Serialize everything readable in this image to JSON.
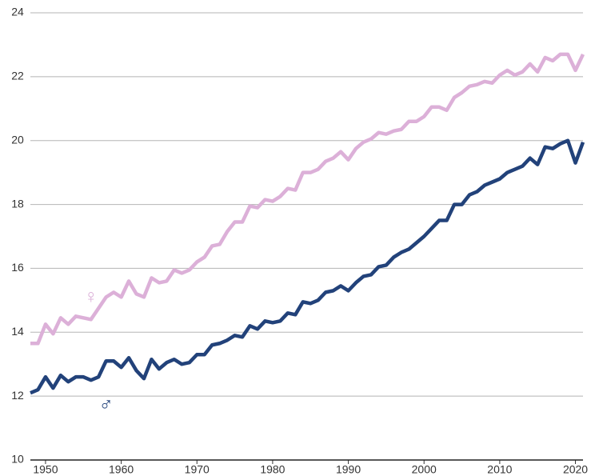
{
  "chart_data": {
    "type": "line",
    "x": [
      1948,
      1949,
      1950,
      1951,
      1952,
      1953,
      1954,
      1955,
      1956,
      1957,
      1958,
      1959,
      1960,
      1961,
      1962,
      1963,
      1964,
      1965,
      1966,
      1967,
      1968,
      1969,
      1970,
      1971,
      1972,
      1973,
      1974,
      1975,
      1976,
      1977,
      1978,
      1979,
      1980,
      1981,
      1982,
      1983,
      1984,
      1985,
      1986,
      1987,
      1988,
      1989,
      1990,
      1991,
      1992,
      1993,
      1994,
      1995,
      1996,
      1997,
      1998,
      1999,
      2000,
      2001,
      2002,
      2003,
      2004,
      2005,
      2006,
      2007,
      2008,
      2009,
      2010,
      2011,
      2012,
      2013,
      2014,
      2015,
      2016,
      2017,
      2018,
      2019,
      2020,
      2021
    ],
    "series": [
      {
        "name": "♀",
        "color": "#dcb0d8",
        "values": [
          13.65,
          13.65,
          14.25,
          13.95,
          14.45,
          14.25,
          14.5,
          14.45,
          14.4,
          14.75,
          15.1,
          15.25,
          15.1,
          15.6,
          15.2,
          15.1,
          15.7,
          15.55,
          15.6,
          15.95,
          15.85,
          15.95,
          16.2,
          16.35,
          16.7,
          16.75,
          17.15,
          17.45,
          17.45,
          17.95,
          17.9,
          18.15,
          18.1,
          18.25,
          18.5,
          18.45,
          19.0,
          19.0,
          19.1,
          19.35,
          19.45,
          19.65,
          19.4,
          19.75,
          19.95,
          20.05,
          20.25,
          20.2,
          20.3,
          20.35,
          20.6,
          20.6,
          20.75,
          21.05,
          21.05,
          20.95,
          21.35,
          21.5,
          21.7,
          21.75,
          21.85,
          21.8,
          22.05,
          22.2,
          22.05,
          22.15,
          22.4,
          22.15,
          22.6,
          22.5,
          22.7,
          22.7,
          22.2,
          22.7
        ]
      },
      {
        "name": "♂",
        "color": "#22427a",
        "values": [
          12.1,
          12.2,
          12.6,
          12.25,
          12.65,
          12.45,
          12.6,
          12.6,
          12.5,
          12.6,
          13.1,
          13.1,
          12.9,
          13.2,
          12.8,
          12.55,
          13.15,
          12.85,
          13.05,
          13.15,
          13.0,
          13.05,
          13.3,
          13.3,
          13.6,
          13.65,
          13.75,
          13.9,
          13.85,
          14.2,
          14.1,
          14.35,
          14.3,
          14.35,
          14.6,
          14.55,
          14.95,
          14.9,
          15.0,
          15.25,
          15.3,
          15.45,
          15.3,
          15.55,
          15.75,
          15.8,
          16.05,
          16.1,
          16.35,
          16.5,
          16.6,
          16.8,
          17.0,
          17.25,
          17.5,
          17.5,
          18.0,
          18.0,
          18.3,
          18.4,
          18.6,
          18.7,
          18.8,
          19.0,
          19.1,
          19.2,
          19.45,
          19.25,
          19.8,
          19.75,
          19.9,
          20.0,
          19.3,
          19.95
        ]
      }
    ],
    "xlim": [
      1948,
      2021
    ],
    "xticks": [
      1950,
      1960,
      1970,
      1980,
      1990,
      2000,
      2010,
      2020
    ],
    "ylim": [
      10,
      24
    ],
    "yticks": [
      10,
      12,
      14,
      16,
      18,
      20,
      22,
      24
    ],
    "grid": true
  }
}
